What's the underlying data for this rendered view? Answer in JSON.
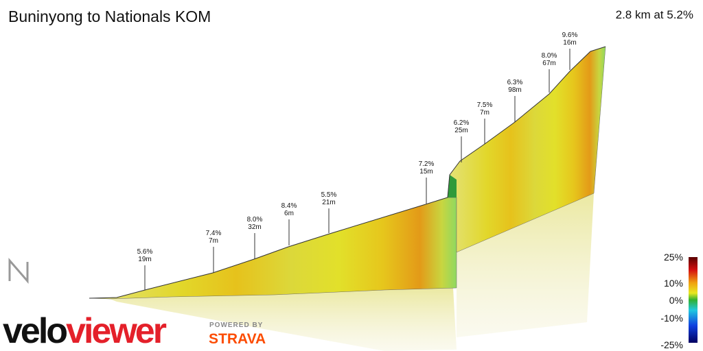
{
  "header": {
    "title": "Buninyong to Nationals KOM",
    "summary": "2.8 km at 5.2%"
  },
  "annotations": [
    {
      "grade": "5.6%",
      "length": "19m"
    },
    {
      "grade": "7.4%",
      "length": "7m"
    },
    {
      "grade": "8.0%",
      "length": "32m"
    },
    {
      "grade": "8.4%",
      "length": "6m"
    },
    {
      "grade": "5.5%",
      "length": "21m"
    },
    {
      "grade": "7.2%",
      "length": "15m"
    },
    {
      "grade": "6.2%",
      "length": "25m"
    },
    {
      "grade": "7.5%",
      "length": "7m"
    },
    {
      "grade": "6.3%",
      "length": "98m"
    },
    {
      "grade": "8.0%",
      "length": "67m"
    },
    {
      "grade": "9.6%",
      "length": "16m"
    }
  ],
  "legend": {
    "labels": [
      "25%",
      "10%",
      "0%",
      "-10%",
      "-25%"
    ]
  },
  "branding": {
    "logo_velo": "velo",
    "logo_viewer": "viewer",
    "powered": "POWERED BY",
    "strava": "STRAVA"
  }
}
